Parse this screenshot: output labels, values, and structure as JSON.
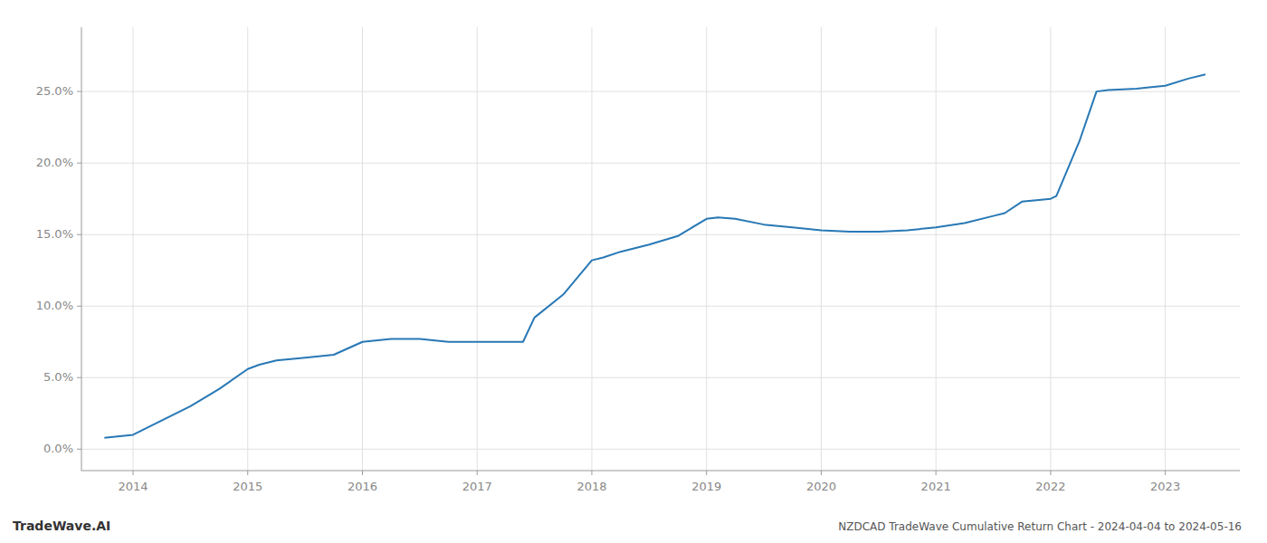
{
  "chart_data": {
    "type": "line",
    "title": "NZDCAD TradeWave Cumulative Return Chart - 2024-04-04 to 2024-05-16",
    "annotations": [
      "TradeWave.AI"
    ],
    "x": [
      2013.75,
      2014.0,
      2014.25,
      2014.5,
      2014.75,
      2015.0,
      2015.1,
      2015.25,
      2015.5,
      2015.75,
      2016.0,
      2016.25,
      2016.35,
      2016.5,
      2016.75,
      2017.0,
      2017.25,
      2017.4,
      2017.5,
      2017.75,
      2018.0,
      2018.1,
      2018.25,
      2018.5,
      2018.75,
      2019.0,
      2019.1,
      2019.25,
      2019.5,
      2019.75,
      2020.0,
      2020.25,
      2020.5,
      2020.75,
      2021.0,
      2021.25,
      2021.5,
      2021.6,
      2021.75,
      2022.0,
      2022.05,
      2022.25,
      2022.4,
      2022.5,
      2022.75,
      2023.0,
      2023.2,
      2023.35
    ],
    "values": [
      0.008,
      0.01,
      0.02,
      0.03,
      0.042,
      0.056,
      0.059,
      0.062,
      0.064,
      0.066,
      0.075,
      0.077,
      0.077,
      0.077,
      0.075,
      0.075,
      0.075,
      0.075,
      0.092,
      0.108,
      0.132,
      0.134,
      0.138,
      0.143,
      0.149,
      0.161,
      0.162,
      0.161,
      0.157,
      0.155,
      0.153,
      0.152,
      0.152,
      0.153,
      0.155,
      0.158,
      0.163,
      0.165,
      0.173,
      0.175,
      0.177,
      0.215,
      0.25,
      0.251,
      0.252,
      0.254,
      0.259,
      0.262
    ],
    "color": "#2878b5",
    "xlim": [
      2013.55,
      2023.65
    ],
    "ylim": [
      -0.015,
      0.295
    ],
    "xticks": [
      2014,
      2015,
      2016,
      2017,
      2018,
      2019,
      2020,
      2021,
      2022,
      2023
    ],
    "yticks": [
      {
        "value": 0.0,
        "label": "0.0%"
      },
      {
        "value": 0.05,
        "label": "5.0%"
      },
      {
        "value": 0.1,
        "label": "10.0%"
      },
      {
        "value": 0.15,
        "label": "15.0%"
      },
      {
        "value": 0.2,
        "label": "20.0%"
      },
      {
        "value": 0.25,
        "label": "25.0%"
      }
    ],
    "grid": true
  }
}
